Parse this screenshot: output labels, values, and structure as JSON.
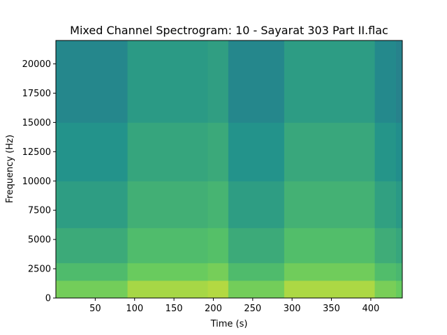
{
  "chart_data": {
    "type": "heatmap",
    "title": "Mixed Channel Spectrogram: 10 - Sayarat 303 Part II.flac",
    "xlabel": "Time (s)",
    "ylabel": "Frequency (Hz)",
    "xlim": [
      0,
      440
    ],
    "ylim": [
      0,
      22000
    ],
    "x_ticks": [
      50,
      100,
      150,
      200,
      250,
      300,
      350,
      400
    ],
    "y_ticks": [
      0,
      2500,
      5000,
      7500,
      10000,
      12500,
      15000,
      17500,
      20000
    ],
    "colormap": "viridis",
    "grid": false,
    "time_segments": [
      {
        "start": 0,
        "end": 4,
        "upper_intensity": 0.42
      },
      {
        "start": 4,
        "end": 91,
        "upper_intensity": 0.4
      },
      {
        "start": 91,
        "end": 193,
        "upper_intensity": 0.56
      },
      {
        "start": 193,
        "end": 219,
        "upper_intensity": 0.6
      },
      {
        "start": 219,
        "end": 290,
        "upper_intensity": 0.4
      },
      {
        "start": 290,
        "end": 405,
        "upper_intensity": 0.58
      },
      {
        "start": 405,
        "end": 432,
        "upper_intensity": 0.42
      },
      {
        "start": 432,
        "end": 440,
        "upper_intensity": 0.36
      }
    ],
    "frequency_bands": [
      {
        "from": 0,
        "to": 1500,
        "intensity": 0.86
      },
      {
        "from": 1500,
        "to": 3000,
        "intensity": 0.76
      },
      {
        "from": 3000,
        "to": 6000,
        "intensity": 0.68
      },
      {
        "from": 6000,
        "to": 10000,
        "intensity": 0.62
      },
      {
        "from": 10000,
        "to": 15000,
        "intensity": 0.57
      },
      {
        "from": 15000,
        "to": 22000,
        "intensity": 0.52
      }
    ]
  }
}
